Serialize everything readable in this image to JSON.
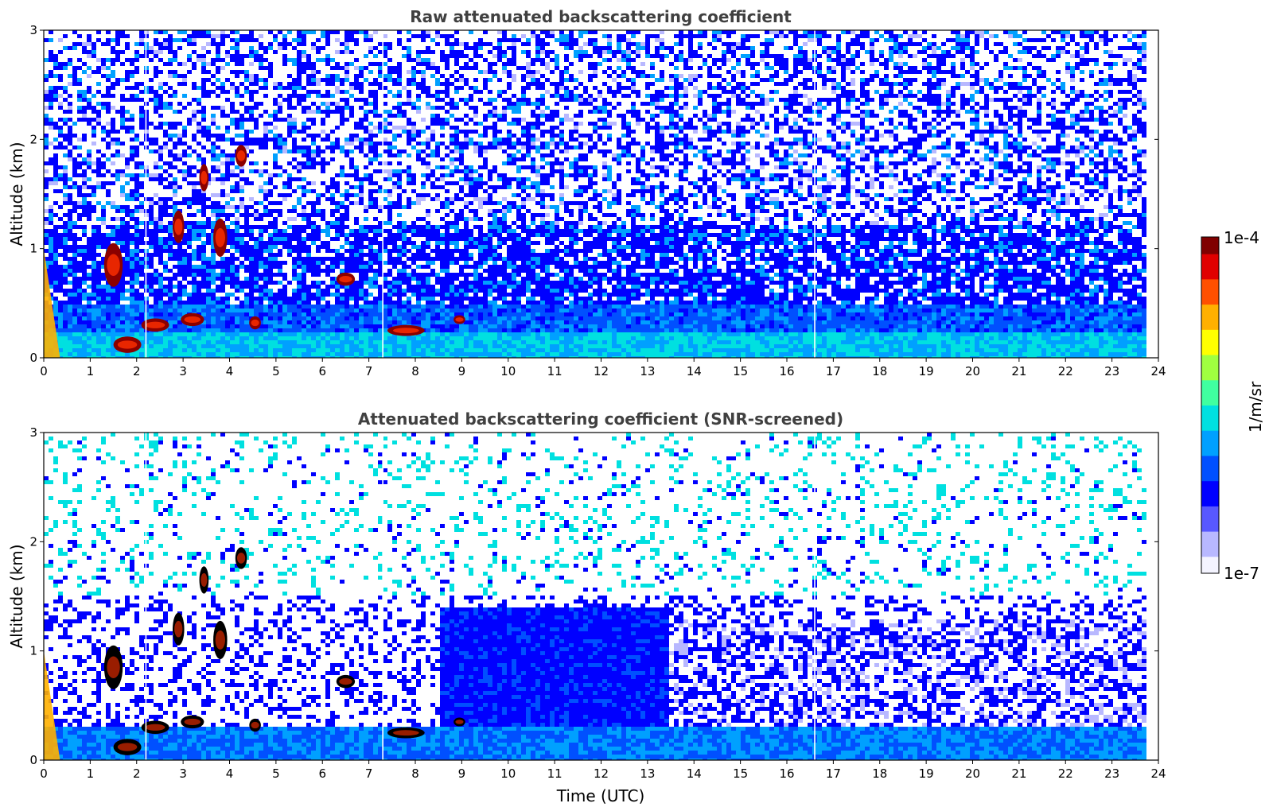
{
  "chart_data": [
    {
      "type": "heatmap",
      "title": "Raw attenuated backscattering coefficient",
      "xlabel": "",
      "ylabel": "Altitude (km)",
      "xlim": [
        0,
        24
      ],
      "ylim": [
        0,
        3
      ],
      "xticks": [
        "0",
        "1",
        "2",
        "3",
        "4",
        "5",
        "6",
        "7",
        "8",
        "9",
        "10",
        "11",
        "12",
        "13",
        "14",
        "15",
        "16",
        "17",
        "18",
        "19",
        "20",
        "21",
        "22",
        "23",
        "24"
      ],
      "yticks": [
        "0",
        "1",
        "2",
        "3"
      ],
      "features": [
        {
          "name": "low-level aerosol layer",
          "time": [
            0.5,
            23.8
          ],
          "altitude": [
            0,
            0.4
          ],
          "level": "1e-6"
        },
        {
          "name": "cloud near 2 UTC",
          "time": [
            1.8,
            2.4
          ],
          "altitude": [
            0.1,
            0.4
          ],
          "level": "1e-4"
        },
        {
          "name": "cloud near 8 UTC",
          "time": [
            7.4,
            8.2
          ],
          "altitude": [
            0.2,
            0.35
          ],
          "level": "1e-4"
        }
      ]
    },
    {
      "type": "heatmap",
      "title": "Attenuated backscattering coefficient (SNR-screened)",
      "xlabel": "Time (UTC)",
      "ylabel": "Altitude (km)",
      "xlim": [
        0,
        24
      ],
      "ylim": [
        0,
        3
      ],
      "xticks": [
        "0",
        "1",
        "2",
        "3",
        "4",
        "5",
        "6",
        "7",
        "8",
        "9",
        "10",
        "11",
        "12",
        "13",
        "14",
        "15",
        "16",
        "17",
        "18",
        "19",
        "20",
        "21",
        "22",
        "23",
        "24"
      ],
      "yticks": [
        "0",
        "1",
        "2",
        "3"
      ]
    }
  ],
  "colorbar": {
    "min_label": "1e-7",
    "max_label": "1e-4",
    "label": "1/m/sr",
    "colors": [
      "#f4f4ff",
      "#b8b8ff",
      "#5858ff",
      "#0000ff",
      "#0050ff",
      "#00a0ff",
      "#00e0e0",
      "#40ffa0",
      "#a0ff40",
      "#ffff00",
      "#ffb000",
      "#ff5000",
      "#e00000",
      "#800000"
    ]
  }
}
